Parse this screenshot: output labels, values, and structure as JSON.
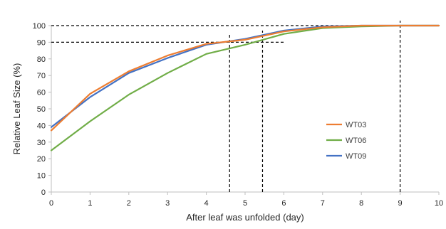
{
  "chart_data": {
    "type": "line",
    "xlabel": "After leaf was unfolded (day)",
    "ylabel": "Relative Leaf Size (%)",
    "xlim": [
      0,
      10
    ],
    "ylim": [
      0,
      100
    ],
    "x_ticks": [
      0,
      1,
      2,
      3,
      4,
      5,
      6,
      7,
      8,
      9,
      10
    ],
    "y_ticks": [
      0,
      10,
      20,
      30,
      40,
      50,
      60,
      70,
      80,
      90,
      100
    ],
    "grid": false,
    "legend_position": "right",
    "series": [
      {
        "name": "WT03",
        "color": "#ED7D31",
        "x": [
          0,
          1,
          2,
          3,
          4,
          5,
          6,
          7,
          8,
          9,
          10
        ],
        "y": [
          37,
          59,
          72.5,
          82,
          89,
          91.5,
          96.5,
          99,
          100,
          100,
          100
        ]
      },
      {
        "name": "WT06",
        "color": "#70AD47",
        "x": [
          0,
          1,
          2,
          3,
          4,
          5,
          6,
          7,
          8,
          9,
          10
        ],
        "y": [
          25,
          42.5,
          58.5,
          71.5,
          83,
          88.5,
          95,
          98.5,
          99.5,
          100,
          100
        ]
      },
      {
        "name": "WT09",
        "color": "#4472C4",
        "x": [
          0,
          1,
          2,
          3,
          4,
          5,
          6,
          7,
          8,
          9,
          10
        ],
        "y": [
          39,
          57,
          71.5,
          80.5,
          88.5,
          92,
          97,
          99.5,
          100,
          100,
          100
        ]
      }
    ],
    "reference_lines": {
      "horizontal": [
        {
          "y": 100,
          "x_from": 0,
          "x_to": 9.3
        },
        {
          "y": 90,
          "x_from": 0,
          "x_to": 6.0
        }
      ],
      "vertical": [
        {
          "x": 4.6,
          "y_from": 0,
          "y_to": 95
        },
        {
          "x": 5.45,
          "y_from": 0,
          "y_to": 97
        },
        {
          "x": 9.0,
          "y_from": 0,
          "y_to": 103
        }
      ]
    }
  }
}
